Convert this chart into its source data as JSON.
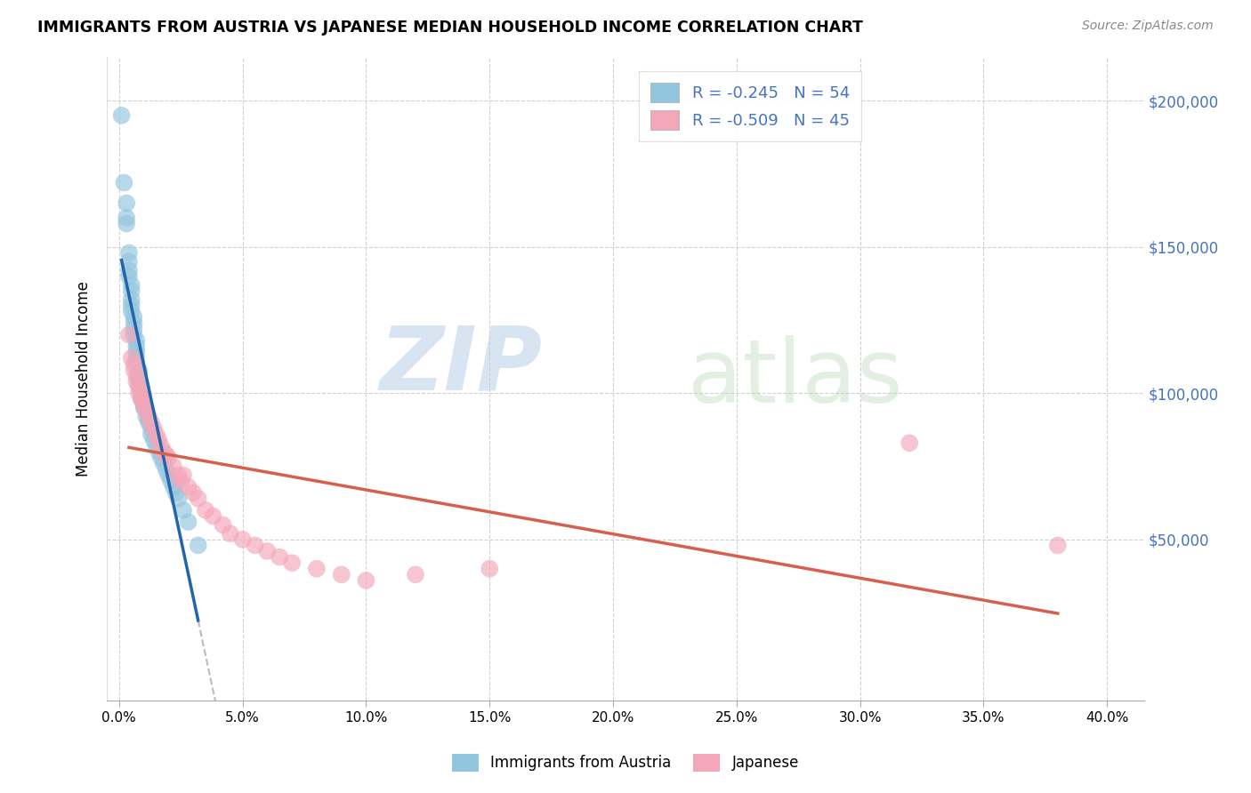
{
  "title": "IMMIGRANTS FROM AUSTRIA VS JAPANESE MEDIAN HOUSEHOLD INCOME CORRELATION CHART",
  "source": "Source: ZipAtlas.com",
  "ylabel": "Median Household Income",
  "y_ticks": [
    0,
    50000,
    100000,
    150000,
    200000
  ],
  "y_tick_labels": [
    "",
    "$50,000",
    "$100,000",
    "$150,000",
    "$200,000"
  ],
  "x_ticks": [
    0.0,
    0.05,
    0.1,
    0.15,
    0.2,
    0.25,
    0.3,
    0.35,
    0.4
  ],
  "x_tick_labels": [
    "0.0%",
    "5.0%",
    "10.0%",
    "15.0%",
    "20.0%",
    "25.0%",
    "30.0%",
    "35.0%",
    "40.0%"
  ],
  "xlim": [
    -0.005,
    0.415
  ],
  "ylim": [
    -5000,
    215000
  ],
  "legend_label1": "Immigrants from Austria",
  "legend_label2": "Japanese",
  "color_blue": "#92c5de",
  "color_blue_line": "#2166ac",
  "color_pink": "#f4a7b9",
  "color_pink_line": "#d6604d",
  "color_trendline_ext": "#bbbbbb",
  "watermark_zip": "ZIP",
  "watermark_atlas": "atlas",
  "austria_x": [
    0.001,
    0.002,
    0.003,
    0.003,
    0.003,
    0.004,
    0.004,
    0.004,
    0.004,
    0.005,
    0.005,
    0.005,
    0.005,
    0.005,
    0.006,
    0.006,
    0.006,
    0.006,
    0.007,
    0.007,
    0.007,
    0.007,
    0.007,
    0.008,
    0.008,
    0.008,
    0.008,
    0.009,
    0.009,
    0.009,
    0.009,
    0.01,
    0.01,
    0.01,
    0.011,
    0.011,
    0.012,
    0.012,
    0.013,
    0.013,
    0.014,
    0.015,
    0.016,
    0.017,
    0.018,
    0.019,
    0.02,
    0.021,
    0.022,
    0.023,
    0.024,
    0.026,
    0.028,
    0.032
  ],
  "austria_y": [
    195000,
    172000,
    165000,
    160000,
    158000,
    148000,
    145000,
    142000,
    140000,
    137000,
    135000,
    132000,
    130000,
    128000,
    126000,
    124000,
    122000,
    120000,
    118000,
    116000,
    114000,
    112000,
    110000,
    108000,
    107000,
    105000,
    103000,
    102000,
    100000,
    99000,
    98000,
    97000,
    96000,
    95000,
    94000,
    92000,
    91000,
    90000,
    88000,
    86000,
    84000,
    82000,
    80000,
    78000,
    76000,
    74000,
    72000,
    70000,
    68000,
    66000,
    64000,
    60000,
    56000,
    48000
  ],
  "japanese_x": [
    0.004,
    0.005,
    0.006,
    0.006,
    0.007,
    0.007,
    0.008,
    0.008,
    0.009,
    0.009,
    0.01,
    0.01,
    0.011,
    0.012,
    0.013,
    0.014,
    0.015,
    0.016,
    0.017,
    0.018,
    0.019,
    0.02,
    0.022,
    0.024,
    0.025,
    0.026,
    0.028,
    0.03,
    0.032,
    0.035,
    0.038,
    0.042,
    0.045,
    0.05,
    0.055,
    0.06,
    0.065,
    0.07,
    0.08,
    0.09,
    0.1,
    0.12,
    0.15,
    0.32,
    0.38
  ],
  "japanese_y": [
    120000,
    112000,
    108000,
    110000,
    106000,
    104000,
    102000,
    100000,
    100000,
    98000,
    96000,
    97000,
    94000,
    92000,
    90000,
    88000,
    86000,
    84000,
    82000,
    80000,
    79000,
    78000,
    75000,
    72000,
    70000,
    72000,
    68000,
    66000,
    64000,
    60000,
    58000,
    55000,
    52000,
    50000,
    48000,
    46000,
    44000,
    42000,
    40000,
    38000,
    36000,
    38000,
    40000,
    83000,
    48000
  ]
}
